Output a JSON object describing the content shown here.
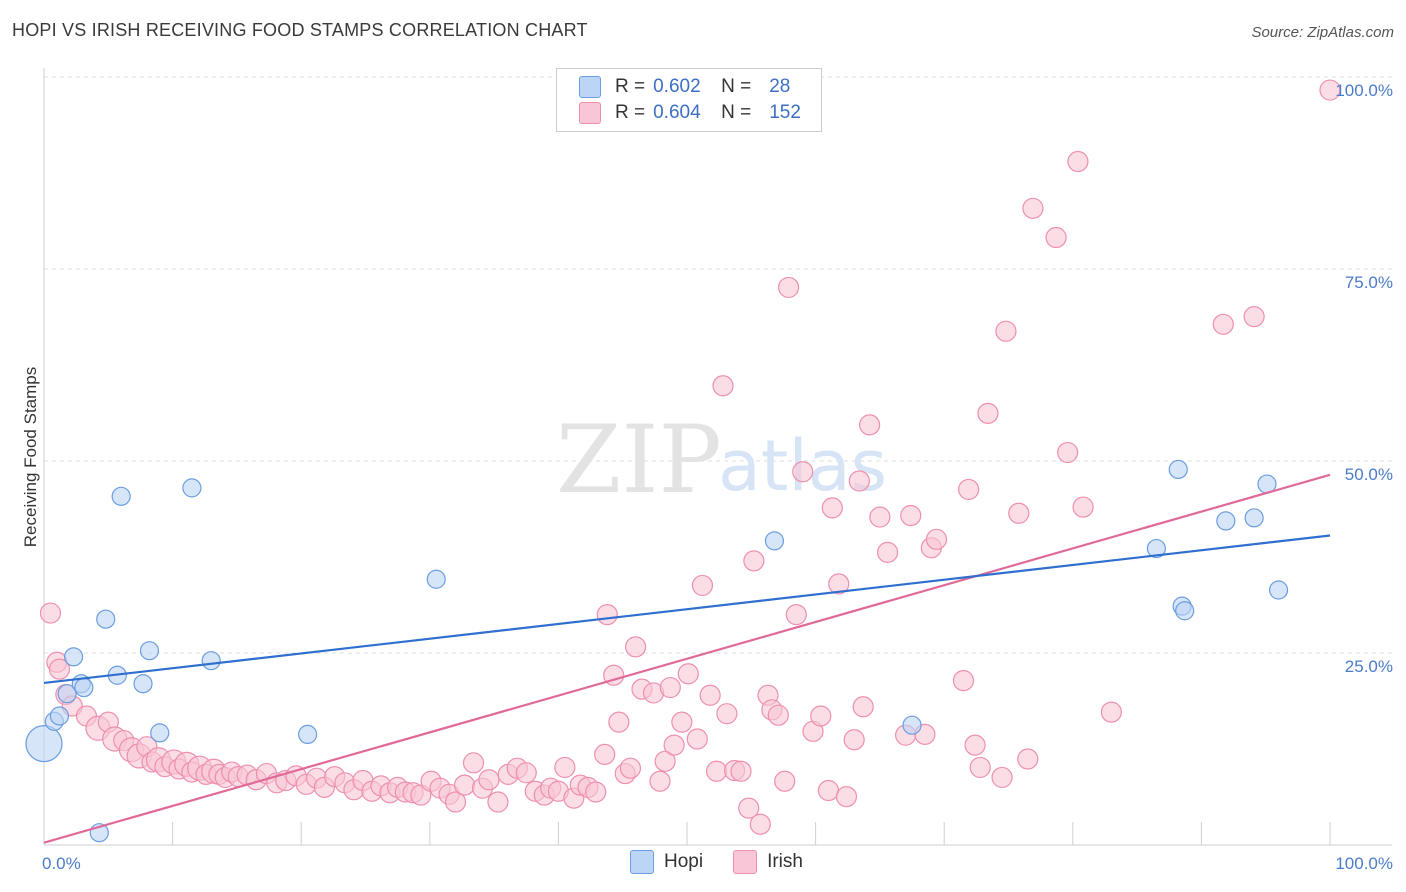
{
  "header": {
    "title": "HOPI VS IRISH RECEIVING FOOD STAMPS CORRELATION CHART",
    "source": "Source: ZipAtlas.com"
  },
  "watermark": {
    "zip": "ZIP",
    "atlas": "atlas"
  },
  "legend": {
    "rows": [
      {
        "r_label": "R =",
        "r_value": "0.602",
        "n_label": "N =",
        "n_value": "28"
      },
      {
        "r_label": "R =",
        "r_value": "0.604",
        "n_label": "N =",
        "n_value": "152"
      }
    ]
  },
  "bottom_legend": {
    "hopi": "Hopi",
    "irish": "Irish"
  },
  "colors": {
    "hopi_fill": "#bcd4f5",
    "hopi_stroke": "#6a9ee0",
    "hopi_line": "#2f6fcf",
    "irish_fill": "#f8c6d6",
    "irish_stroke": "#ee8fae",
    "irish_line": "#e0699a",
    "tick_text": "#4a7cc9",
    "grid": "#dcdcdc"
  },
  "chart_data": {
    "type": "scatter",
    "ylabel": "Receiving Food Stamps",
    "xlabel": "",
    "xlim": [
      0,
      100
    ],
    "ylim": [
      0,
      100
    ],
    "x_tick_labels": [
      "0.0%",
      "100.0%"
    ],
    "y_ticks": [
      25,
      50,
      75,
      100
    ],
    "y_tick_labels": [
      "25.0%",
      "50.0%",
      "75.0%",
      "100.0%"
    ],
    "grid": true,
    "legend_position": "top-center",
    "series": [
      {
        "name": "Hopi",
        "r": 0.602,
        "n": 28,
        "trend": [
          [
            0,
            21.1
          ],
          [
            100,
            40.3
          ]
        ],
        "points": [
          [
            0.0,
            13.2,
            18
          ],
          [
            0.8,
            16.1,
            9
          ],
          [
            1.2,
            16.8,
            9
          ],
          [
            1.8,
            19.7,
            9
          ],
          [
            2.3,
            24.5,
            9
          ],
          [
            2.9,
            21.0,
            9
          ],
          [
            3.1,
            20.5,
            9
          ],
          [
            4.3,
            1.6,
            9
          ],
          [
            4.8,
            29.4,
            9
          ],
          [
            5.7,
            22.1,
            9
          ],
          [
            6.0,
            45.4,
            9
          ],
          [
            7.7,
            21.0,
            9
          ],
          [
            8.2,
            25.3,
            9
          ],
          [
            9.0,
            14.6,
            9
          ],
          [
            11.5,
            46.5,
            9
          ],
          [
            13.0,
            24.0,
            9
          ],
          [
            20.5,
            14.4,
            9
          ],
          [
            30.5,
            34.6,
            9
          ],
          [
            56.8,
            39.6,
            9
          ],
          [
            67.5,
            15.6,
            9
          ],
          [
            86.5,
            38.6,
            9
          ],
          [
            88.2,
            48.9,
            9
          ],
          [
            88.5,
            31.1,
            9
          ],
          [
            88.7,
            30.5,
            9
          ],
          [
            91.9,
            42.2,
            9
          ],
          [
            94.1,
            42.6,
            9
          ],
          [
            95.1,
            47.0,
            9
          ],
          [
            96.0,
            33.2,
            9
          ]
        ]
      },
      {
        "name": "Irish",
        "r": 0.604,
        "n": 152,
        "trend": [
          [
            0,
            0.3
          ],
          [
            100,
            48.2
          ]
        ],
        "points": [
          [
            0.5,
            30.2,
            10
          ],
          [
            1.0,
            23.8,
            10
          ],
          [
            1.2,
            22.9,
            10
          ],
          [
            1.7,
            19.6,
            10
          ],
          [
            2.2,
            18.1,
            10
          ],
          [
            3.3,
            16.8,
            10
          ],
          [
            4.2,
            15.2,
            12
          ],
          [
            5.0,
            16.0,
            10
          ],
          [
            5.5,
            13.8,
            12
          ],
          [
            6.2,
            13.6,
            10
          ],
          [
            6.8,
            12.4,
            12
          ],
          [
            7.4,
            11.6,
            12
          ],
          [
            8.0,
            12.8,
            10
          ],
          [
            8.4,
            10.8,
            10
          ],
          [
            8.9,
            11.1,
            12
          ],
          [
            9.4,
            10.2,
            10
          ],
          [
            10.1,
            10.8,
            12
          ],
          [
            10.5,
            9.9,
            10
          ],
          [
            11.1,
            10.5,
            12
          ],
          [
            11.5,
            9.5,
            10
          ],
          [
            12.1,
            10.0,
            12
          ],
          [
            12.6,
            9.2,
            10
          ],
          [
            13.2,
            9.6,
            12
          ],
          [
            13.6,
            9.2,
            10
          ],
          [
            14.1,
            8.8,
            10
          ],
          [
            14.6,
            9.5,
            10
          ],
          [
            15.1,
            8.9,
            10
          ],
          [
            15.8,
            9.1,
            10
          ],
          [
            16.5,
            8.5,
            10
          ],
          [
            17.3,
            9.3,
            10
          ],
          [
            18.1,
            8.1,
            10
          ],
          [
            18.8,
            8.4,
            10
          ],
          [
            19.6,
            9.0,
            10
          ],
          [
            20.4,
            7.9,
            10
          ],
          [
            21.2,
            8.7,
            10
          ],
          [
            21.8,
            7.5,
            10
          ],
          [
            22.6,
            8.9,
            10
          ],
          [
            23.4,
            8.1,
            10
          ],
          [
            24.1,
            7.2,
            10
          ],
          [
            24.8,
            8.4,
            10
          ],
          [
            25.5,
            7.0,
            10
          ],
          [
            26.2,
            7.7,
            10
          ],
          [
            26.9,
            6.8,
            10
          ],
          [
            27.5,
            7.5,
            10
          ],
          [
            28.1,
            6.9,
            10
          ],
          [
            28.7,
            6.8,
            10
          ],
          [
            29.3,
            6.5,
            10
          ],
          [
            30.1,
            8.3,
            10
          ],
          [
            30.8,
            7.4,
            10
          ],
          [
            31.5,
            6.6,
            10
          ],
          [
            32.0,
            5.6,
            10
          ],
          [
            32.7,
            7.8,
            10
          ],
          [
            33.4,
            10.7,
            10
          ],
          [
            34.1,
            7.4,
            10
          ],
          [
            34.6,
            8.5,
            10
          ],
          [
            35.3,
            5.6,
            10
          ],
          [
            36.1,
            9.2,
            10
          ],
          [
            36.8,
            10.0,
            10
          ],
          [
            37.5,
            9.4,
            10
          ],
          [
            38.2,
            7.0,
            10
          ],
          [
            38.9,
            6.5,
            10
          ],
          [
            39.4,
            7.4,
            10
          ],
          [
            40.0,
            7.0,
            10
          ],
          [
            40.5,
            10.1,
            10
          ],
          [
            41.2,
            6.1,
            10
          ],
          [
            41.7,
            7.8,
            10
          ],
          [
            42.3,
            7.5,
            10
          ],
          [
            42.9,
            6.9,
            10
          ],
          [
            43.6,
            11.8,
            10
          ],
          [
            43.8,
            30.0,
            10
          ],
          [
            44.3,
            22.1,
            10
          ],
          [
            44.7,
            16.0,
            10
          ],
          [
            45.2,
            9.3,
            10
          ],
          [
            45.6,
            10.0,
            10
          ],
          [
            46.0,
            25.8,
            10
          ],
          [
            46.5,
            20.3,
            10
          ],
          [
            47.4,
            19.8,
            10
          ],
          [
            47.9,
            8.3,
            10
          ],
          [
            48.3,
            10.9,
            10
          ],
          [
            48.7,
            20.5,
            10
          ],
          [
            49.0,
            13.0,
            10
          ],
          [
            49.6,
            16.0,
            10
          ],
          [
            50.1,
            22.3,
            10
          ],
          [
            50.8,
            13.8,
            10
          ],
          [
            51.2,
            33.8,
            10
          ],
          [
            51.8,
            19.5,
            10
          ],
          [
            52.3,
            9.6,
            10
          ],
          [
            52.8,
            59.8,
            10
          ],
          [
            53.1,
            17.1,
            10
          ],
          [
            53.7,
            9.7,
            10
          ],
          [
            54.2,
            9.6,
            10
          ],
          [
            54.8,
            4.8,
            10
          ],
          [
            55.2,
            37.0,
            10
          ],
          [
            55.7,
            2.7,
            10
          ],
          [
            56.3,
            19.5,
            10
          ],
          [
            56.6,
            17.6,
            10
          ],
          [
            57.1,
            16.9,
            10
          ],
          [
            57.6,
            8.3,
            10
          ],
          [
            57.9,
            72.6,
            10
          ],
          [
            58.5,
            30.0,
            10
          ],
          [
            59.0,
            48.6,
            10
          ],
          [
            59.8,
            14.8,
            10
          ],
          [
            60.4,
            16.8,
            10
          ],
          [
            61.0,
            7.1,
            10
          ],
          [
            61.3,
            43.9,
            10
          ],
          [
            61.8,
            34.0,
            10
          ],
          [
            62.4,
            6.3,
            10
          ],
          [
            63.0,
            13.7,
            10
          ],
          [
            63.4,
            47.4,
            10
          ],
          [
            63.7,
            18.0,
            10
          ],
          [
            64.2,
            54.7,
            10
          ],
          [
            65.0,
            42.7,
            10
          ],
          [
            65.6,
            38.1,
            10
          ],
          [
            67.0,
            14.3,
            10
          ],
          [
            67.4,
            42.9,
            10
          ],
          [
            68.5,
            14.4,
            10
          ],
          [
            69.0,
            38.7,
            10
          ],
          [
            69.4,
            39.8,
            10
          ],
          [
            71.5,
            21.4,
            10
          ],
          [
            71.9,
            46.3,
            10
          ],
          [
            72.4,
            13.0,
            10
          ],
          [
            72.8,
            10.1,
            10
          ],
          [
            73.4,
            56.2,
            10
          ],
          [
            74.5,
            8.8,
            10
          ],
          [
            74.8,
            66.9,
            10
          ],
          [
            75.8,
            43.2,
            10
          ],
          [
            76.5,
            11.2,
            10
          ],
          [
            76.9,
            82.9,
            10
          ],
          [
            78.7,
            79.1,
            10
          ],
          [
            79.6,
            51.1,
            10
          ],
          [
            80.4,
            89.0,
            10
          ],
          [
            80.8,
            44.0,
            10
          ],
          [
            83.0,
            17.3,
            10
          ],
          [
            91.7,
            67.8,
            10
          ],
          [
            94.1,
            68.8,
            10
          ],
          [
            100.0,
            98.3,
            10
          ]
        ]
      }
    ]
  }
}
